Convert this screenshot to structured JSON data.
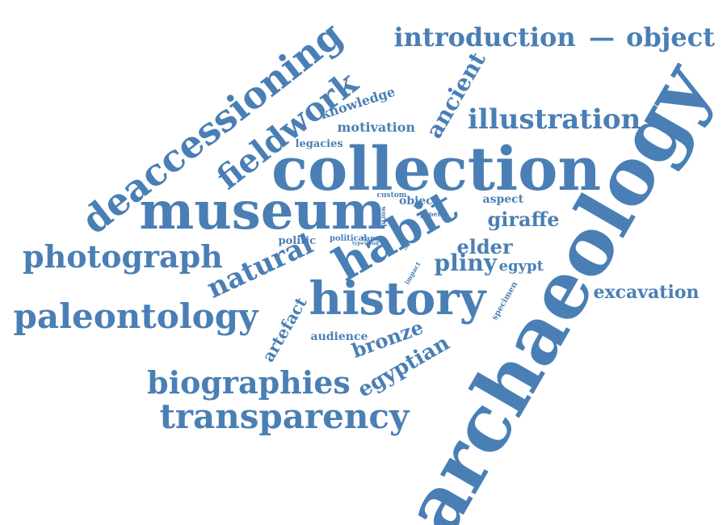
{
  "color": "#4a7fb5",
  "words": [
    {
      "text": "archaeology",
      "weight": 100
    },
    {
      "text": "collection",
      "weight": 70
    },
    {
      "text": "museum",
      "weight": 64
    },
    {
      "text": "history",
      "weight": 58
    },
    {
      "text": "habit",
      "weight": 60
    },
    {
      "text": "deaccessioning",
      "weight": 50
    },
    {
      "text": "fieldwork",
      "weight": 42
    },
    {
      "text": "transparency",
      "weight": 42
    },
    {
      "text": "paleontology",
      "weight": 42
    },
    {
      "text": "photograph",
      "weight": 38
    },
    {
      "text": "biographies",
      "weight": 40
    },
    {
      "text": "natural",
      "weight": 38
    },
    {
      "text": "introduction",
      "weight": 28
    },
    {
      "text": "object",
      "weight": 28
    },
    {
      "text": "illustration",
      "weight": 30
    },
    {
      "text": "ancient",
      "weight": 28
    },
    {
      "text": "egyptian",
      "weight": 26
    },
    {
      "text": "pliny",
      "weight": 26
    },
    {
      "text": "bronze",
      "weight": 22
    },
    {
      "text": "elder",
      "weight": 22
    },
    {
      "text": "excavation",
      "weight": 20
    },
    {
      "text": "giraffe",
      "weight": 20
    },
    {
      "text": "artefact",
      "weight": 20
    },
    {
      "text": "egypt",
      "weight": 16
    },
    {
      "text": "knowledge",
      "weight": 15
    },
    {
      "text": "motivation",
      "weight": 14
    },
    {
      "text": "audience",
      "weight": 13
    },
    {
      "text": "legacies",
      "weight": 12
    },
    {
      "text": "aspect",
      "weight": 12
    },
    {
      "text": "politic",
      "weight": 11
    },
    {
      "text": "object",
      "weight": 11
    },
    {
      "text": "specimen",
      "weight": 8
    },
    {
      "text": "political",
      "weight": 8
    },
    {
      "text": "custom",
      "weight": 7
    },
    {
      "text": "range",
      "weight": 6
    },
    {
      "text": "world",
      "weight": 6
    },
    {
      "text": "paper",
      "weight": 6
    },
    {
      "text": "impact",
      "weight": 6
    },
    {
      "text": "type",
      "weight": 5
    },
    {
      "text": "thing",
      "weight": 5
    },
    {
      "text": "city",
      "weight": 4
    }
  ]
}
